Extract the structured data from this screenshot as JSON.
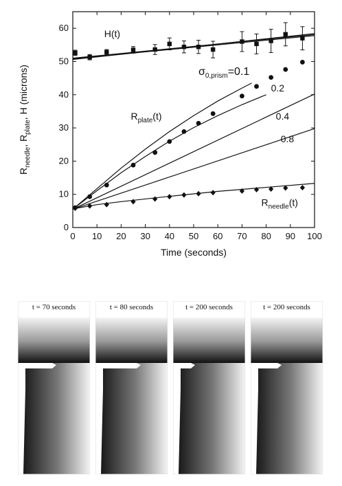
{
  "chart_data": {
    "type": "scatter",
    "xlabel": "Time (seconds)",
    "ylabel": "R_needle, R_plate, H (microns)",
    "xlim": [
      0,
      100
    ],
    "ylim": [
      0,
      65
    ],
    "xticks": [
      0,
      10,
      20,
      30,
      40,
      50,
      60,
      70,
      80,
      90,
      100
    ],
    "yticks": [
      0,
      10,
      20,
      30,
      40,
      50,
      60
    ],
    "ylabel_parts": {
      "base": "R",
      "sub1": "needle",
      "sub2": "plate",
      "tail": ", H  (microns)"
    },
    "series": [
      {
        "name": "H(t)",
        "marker": "square",
        "x": [
          1,
          7,
          14,
          25,
          34,
          40,
          46,
          52,
          58,
          70,
          76,
          82,
          88,
          95
        ],
        "y": [
          52.6,
          51.3,
          52.8,
          53.5,
          53.6,
          55.3,
          54.4,
          54.4,
          53.6,
          56.0,
          55.3,
          56.2,
          58.2,
          57.0
        ],
        "yerr": [
          0.8,
          0.8,
          0.8,
          1.0,
          1.5,
          1.8,
          1.8,
          2.0,
          2.5,
          3.0,
          3.0,
          3.5,
          3.5,
          3.5
        ]
      },
      {
        "name": "R_plate(t)",
        "marker": "circle",
        "x": [
          1,
          7,
          14,
          25,
          34,
          40,
          46,
          52,
          58,
          70,
          76,
          82,
          88,
          95
        ],
        "y": [
          6.0,
          9.3,
          12.8,
          18.8,
          22.6,
          25.9,
          28.9,
          31.4,
          34.3,
          39.6,
          42.5,
          45.2,
          47.6,
          49.8
        ]
      },
      {
        "name": "R_needle(t)",
        "marker": "diamond",
        "x": [
          1,
          7,
          14,
          25,
          34,
          40,
          46,
          52,
          58,
          70,
          76,
          82,
          88,
          95
        ],
        "y": [
          5.8,
          6.5,
          6.9,
          7.8,
          8.6,
          9.3,
          9.8,
          10.2,
          10.5,
          11.0,
          11.4,
          11.6,
          11.9,
          12.0
        ]
      }
    ],
    "fit_lines": [
      {
        "name": "H fit 1",
        "x": [
          0,
          100
        ],
        "y": [
          51.0,
          58.1
        ]
      },
      {
        "name": "H fit 2",
        "x": [
          0,
          100
        ],
        "y": [
          50.8,
          57.8
        ]
      },
      {
        "name": "H fit 3",
        "x": [
          0,
          100
        ],
        "y": [
          50.6,
          58.4
        ]
      },
      {
        "name": "sigma 0.1",
        "x": [
          0,
          10,
          20,
          30,
          40,
          50,
          60,
          70,
          74
        ],
        "y": [
          5.5,
          11.7,
          17.9,
          23.6,
          28.9,
          33.7,
          38.1,
          42.0,
          43.5
        ]
      },
      {
        "name": "sigma 0.2",
        "x": [
          0,
          10,
          20,
          30,
          40,
          50,
          60,
          70,
          80
        ],
        "y": [
          5.5,
          11.1,
          16.5,
          21.4,
          26.0,
          30.1,
          33.7,
          37.0,
          40.0
        ]
      },
      {
        "name": "sigma 0.4",
        "x": [
          0,
          100
        ],
        "y": [
          5.5,
          40.2
        ]
      },
      {
        "name": "sigma 0.8",
        "x": [
          0,
          100
        ],
        "y": [
          5.5,
          29.8
        ]
      },
      {
        "name": "needle fit",
        "x": [
          0,
          10,
          20,
          40,
          60,
          80,
          100
        ],
        "y": [
          5.6,
          6.9,
          7.8,
          9.4,
          10.9,
          12.1,
          13.3
        ]
      }
    ],
    "annotations": [
      {
        "text": "H(t)",
        "base": "H(t)",
        "sub": "",
        "tail": "",
        "x": 13,
        "y": 57.3
      },
      {
        "text": "σ0,prism=0.1",
        "base": "σ",
        "sub": "0,prism",
        "tail": "=0.1",
        "x": 52,
        "y": 46
      },
      {
        "text": "0.2",
        "base": "0.2",
        "sub": "",
        "tail": "",
        "x": 82,
        "y": 41
      },
      {
        "text": "0.4",
        "base": "0.4",
        "sub": "",
        "tail": "",
        "x": 84,
        "y": 32.5
      },
      {
        "text": "0.8",
        "base": "0.8",
        "sub": "",
        "tail": "",
        "x": 86,
        "y": 25.7
      },
      {
        "text": "R_plate(t)",
        "base": "R",
        "sub": "plate",
        "tail": "(t)",
        "x": 24,
        "y": 32.5
      },
      {
        "text": "R_needle(t)",
        "base": "R",
        "sub": "needle",
        "tail": "(t)",
        "x": 78,
        "y": 6.5
      }
    ]
  },
  "simulation": {
    "panels": [
      {
        "label": "t = 70 seconds",
        "plate_length": 0.48
      },
      {
        "label": "t = 80 seconds",
        "plate_length": 0.57
      },
      {
        "label": "t = 200 seconds",
        "plate_length": 0.25
      },
      {
        "label": "t = 200 seconds",
        "plate_length": 0.37
      }
    ]
  }
}
